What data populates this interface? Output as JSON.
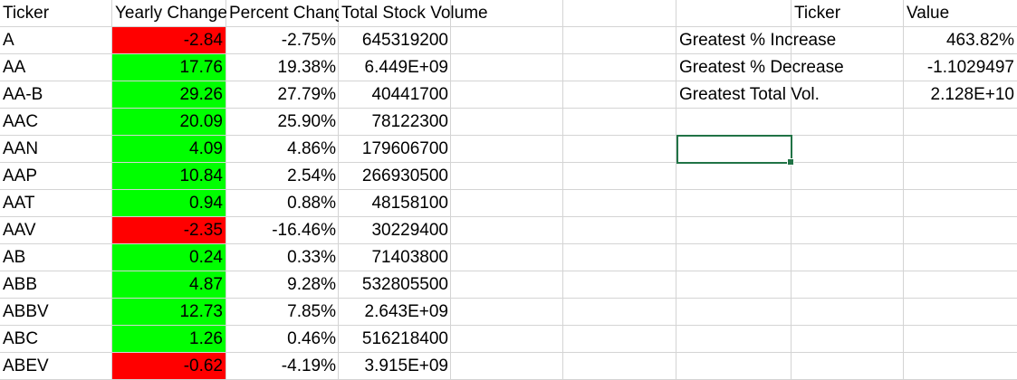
{
  "headers": {
    "ticker": "Ticker",
    "yearly_change": "Yearly Change",
    "percent_change": "Percent Change",
    "total_volume": "Total Stock Volume",
    "summary_ticker": "Ticker",
    "summary_value": "Value"
  },
  "rows": [
    {
      "ticker": "A",
      "change": "-2.84",
      "status": "negative",
      "percent": "-2.75%",
      "volume": "645319200"
    },
    {
      "ticker": "AA",
      "change": "17.76",
      "status": "positive",
      "percent": "19.38%",
      "volume": "6.449E+09"
    },
    {
      "ticker": "AA-B",
      "change": "29.26",
      "status": "positive",
      "percent": "27.79%",
      "volume": "40441700"
    },
    {
      "ticker": "AAC",
      "change": "20.09",
      "status": "positive",
      "percent": "25.90%",
      "volume": "78122300"
    },
    {
      "ticker": "AAN",
      "change": "4.09",
      "status": "positive",
      "percent": "4.86%",
      "volume": "179606700"
    },
    {
      "ticker": "AAP",
      "change": "10.84",
      "status": "positive",
      "percent": "2.54%",
      "volume": "266930500"
    },
    {
      "ticker": "AAT",
      "change": "0.94",
      "status": "positive",
      "percent": "0.88%",
      "volume": "48158100"
    },
    {
      "ticker": "AAV",
      "change": "-2.35",
      "status": "negative",
      "percent": "-16.46%",
      "volume": "30229400"
    },
    {
      "ticker": "AB",
      "change": "0.24",
      "status": "positive",
      "percent": "0.33%",
      "volume": "71403800"
    },
    {
      "ticker": "ABB",
      "change": "4.87",
      "status": "positive",
      "percent": "9.28%",
      "volume": "532805500"
    },
    {
      "ticker": "ABBV",
      "change": "12.73",
      "status": "positive",
      "percent": "7.85%",
      "volume": "2.643E+09"
    },
    {
      "ticker": "ABC",
      "change": "1.26",
      "status": "positive",
      "percent": "0.46%",
      "volume": "516218400"
    },
    {
      "ticker": "ABEV",
      "change": "-0.62",
      "status": "negative",
      "percent": "-4.19%",
      "volume": "3.915E+09"
    }
  ],
  "summary": [
    {
      "label": "Greatest % Increase",
      "value": "463.82%"
    },
    {
      "label": "Greatest % Decrease",
      "value": "-1.1029497"
    },
    {
      "label": "Greatest Total Vol.",
      "value": "2.128E+10"
    }
  ],
  "colors": {
    "positive": "#00ff00",
    "negative": "#ff0000",
    "selection": "#217346",
    "gridline": "#d4d4d4"
  }
}
